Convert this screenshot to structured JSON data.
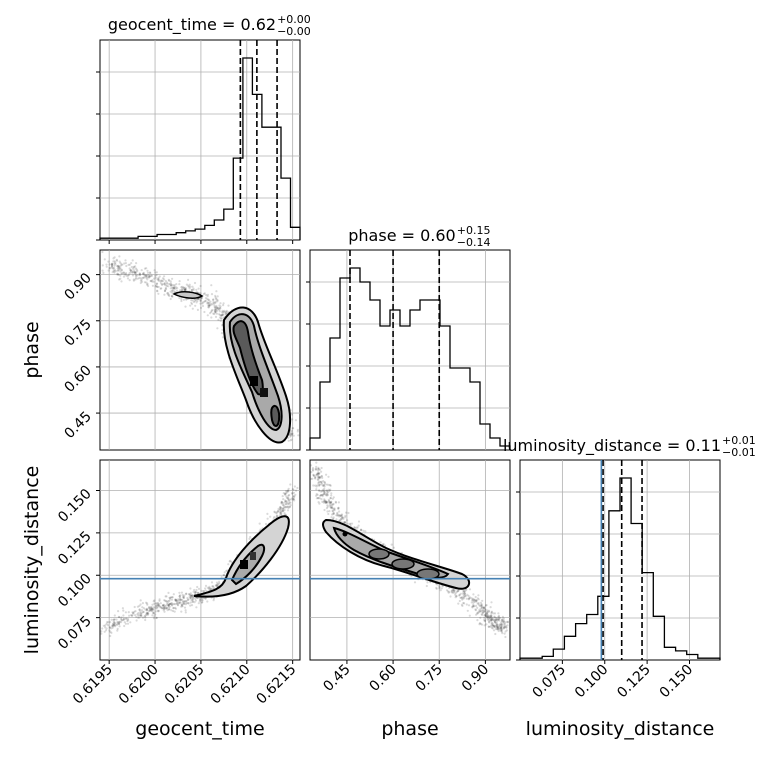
{
  "chart_data": {
    "type": "corner",
    "parameters": [
      "geocent_time",
      "phase",
      "luminosity_distance"
    ],
    "titles": {
      "geocent_time": {
        "name": "geocent_time",
        "median": "0.62",
        "plus": "+0.00",
        "minus": "−0.00"
      },
      "phase": {
        "name": "phase",
        "median": "0.60",
        "plus": "+0.15",
        "minus": "−0.14"
      },
      "luminosity_distance": {
        "name": "luminosity_distance",
        "median": "0.11",
        "plus": "+0.01",
        "minus": "−0.01"
      }
    },
    "axis_labels": {
      "geocent_time": "geocent_time",
      "phase": "phase",
      "luminosity_distance": "luminosity_distance"
    },
    "ranges": {
      "geocent_time": [
        0.6194,
        0.62158
      ],
      "phase": [
        0.33,
        0.98
      ],
      "luminosity_distance": [
        0.05,
        0.168
      ]
    },
    "ticks": {
      "geocent_time": [
        {
          "v": 0.6195,
          "l": "0.6195"
        },
        {
          "v": 0.62,
          "l": "0.6200"
        },
        {
          "v": 0.6205,
          "l": "0.6205"
        },
        {
          "v": 0.621,
          "l": "0.6210"
        },
        {
          "v": 0.6215,
          "l": "0.6215"
        }
      ],
      "phase": [
        {
          "v": 0.45,
          "l": "0.45"
        },
        {
          "v": 0.6,
          "l": "0.60"
        },
        {
          "v": 0.75,
          "l": "0.75"
        },
        {
          "v": 0.9,
          "l": "0.90"
        }
      ],
      "luminosity_distance": [
        {
          "v": 0.075,
          "l": "0.075"
        },
        {
          "v": 0.1,
          "l": "0.100"
        },
        {
          "v": 0.125,
          "l": "0.125"
        },
        {
          "v": 0.15,
          "l": "0.150"
        }
      ]
    },
    "quantiles": {
      "geocent_time": [
        0.62093,
        0.62111,
        0.62133
      ],
      "phase": [
        0.46,
        0.6,
        0.75
      ],
      "luminosity_distance": [
        0.099,
        0.11,
        0.122
      ]
    },
    "truth": {
      "luminosity_distance": 0.098
    },
    "histograms": {
      "geocent_time": {
        "edges_start": 0.6194,
        "edges_end": 0.62158,
        "counts": [
          1,
          1,
          1,
          1,
          2,
          2,
          3,
          3,
          4,
          5,
          6,
          8,
          11,
          17,
          45,
          100,
          80,
          62,
          62,
          34,
          7
        ]
      },
      "phase": {
        "edges_start": 0.33,
        "edges_end": 0.98,
        "counts": [
          6,
          34,
          56,
          86,
          91,
          84,
          75,
          62,
          70,
          62,
          70,
          75,
          75,
          62,
          41,
          41,
          34,
          13,
          6,
          2
        ]
      },
      "luminosity_distance": {
        "edges_start": 0.05,
        "edges_end": 0.168,
        "counts": [
          1,
          1,
          2,
          6,
          13,
          20,
          25,
          35,
          82,
          100,
          75,
          48,
          24,
          7,
          5,
          3,
          1,
          1
        ]
      }
    },
    "grid": true,
    "colors": {
      "samples": "#333333",
      "contour": "#000000",
      "truth": "#4682b4",
      "grid": "#b0b0b0"
    }
  }
}
